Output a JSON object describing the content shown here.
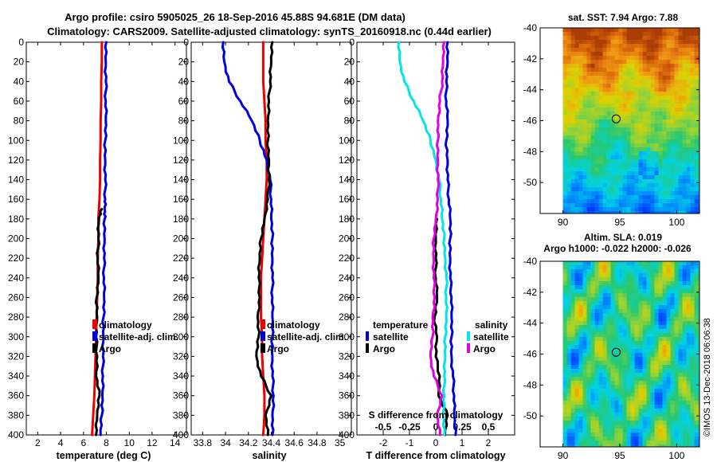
{
  "title": {
    "line1": "Argo profile: csiro 5905025_26 18-Sep-2016 45.88S 94.681E (DM data)",
    "line2": "Climatology: CARS2009. Satellite-adjusted climatology: synTS_20160918.nc (0.44d earlier)"
  },
  "colors": {
    "climatology": "#ee0000",
    "satellite": "#0000dd",
    "argo": "#000000",
    "sal_satellite": "#00e5e5",
    "sal_argo": "#e000e0"
  },
  "chart_data": [
    {
      "type": "line",
      "id": "temperature",
      "xlabel": "temperature (deg C)",
      "xlim": [
        1,
        15
      ],
      "ylim": [
        0,
        400
      ],
      "xticks": [
        "2",
        "4",
        "6",
        "8",
        "10",
        "12",
        "14"
      ],
      "xtick_values": [
        2,
        4,
        6,
        8,
        10,
        12,
        14
      ],
      "yticks": [
        "0",
        "20",
        "40",
        "60",
        "80",
        "100",
        "120",
        "140",
        "160",
        "180",
        "200",
        "220",
        "240",
        "260",
        "280",
        "300",
        "320",
        "340",
        "360",
        "380",
        "400"
      ],
      "depth": [
        0,
        20,
        40,
        60,
        80,
        100,
        120,
        140,
        160,
        170,
        180,
        200,
        220,
        240,
        260,
        280,
        300,
        320,
        340,
        360,
        380,
        400
      ],
      "series": [
        {
          "name": "climatology",
          "color_key": "climatology",
          "values": [
            7.6,
            7.6,
            7.55,
            7.55,
            7.5,
            7.5,
            7.45,
            7.45,
            7.4,
            7.35,
            7.3,
            7.3,
            7.25,
            7.25,
            7.2,
            7.15,
            7.1,
            7.05,
            7.0,
            6.95,
            6.85,
            6.75
          ]
        },
        {
          "name": "satellite-adj. clim.",
          "color_key": "satellite",
          "values": [
            8.0,
            7.95,
            7.95,
            7.95,
            7.95,
            7.9,
            7.9,
            7.9,
            7.9,
            7.85,
            7.85,
            7.85,
            7.8,
            7.8,
            7.8,
            7.75,
            7.75,
            7.7,
            7.7,
            7.65,
            7.6,
            7.5
          ]
        },
        {
          "name": "Argo",
          "color_key": "argo",
          "values": [
            null,
            null,
            null,
            null,
            null,
            null,
            null,
            null,
            null,
            7.6,
            7.35,
            7.3,
            7.25,
            7.3,
            7.15,
            7.2,
            7.1,
            7.2,
            7.1,
            7.4,
            7.2,
            7.1
          ]
        }
      ],
      "legend": [
        "climatology",
        "satellite-adj. clim.",
        "Argo"
      ]
    },
    {
      "type": "line",
      "id": "salinity",
      "xlabel": "salinity",
      "xlim": [
        33.7,
        35.1
      ],
      "ylim": [
        0,
        400
      ],
      "xticks": [
        "33.8",
        "34",
        "34.2",
        "34.4",
        "34.6",
        "34.8",
        "35"
      ],
      "xtick_values": [
        33.8,
        34,
        34.2,
        34.4,
        34.6,
        34.8,
        35
      ],
      "yticks": [
        "0",
        "20",
        "40",
        "60",
        "80",
        "100",
        "120",
        "140",
        "160",
        "180",
        "200",
        "220",
        "240",
        "260",
        "280",
        "300",
        "320",
        "340",
        "360",
        "380",
        "400"
      ],
      "depth": [
        0,
        20,
        40,
        60,
        80,
        100,
        120,
        140,
        160,
        180,
        200,
        220,
        240,
        260,
        280,
        300,
        320,
        340,
        360,
        380,
        400
      ],
      "series": [
        {
          "name": "climatology",
          "color_key": "climatology",
          "values": [
            34.33,
            34.33,
            34.33,
            34.34,
            34.35,
            34.35,
            34.36,
            34.36,
            34.35,
            34.34,
            34.33,
            34.32,
            34.31,
            34.31,
            34.31,
            34.32,
            34.32,
            34.33,
            34.34,
            34.34,
            34.33
          ]
        },
        {
          "name": "satellite-adj. clim.",
          "color_key": "satellite",
          "values": [
            33.98,
            33.99,
            34.03,
            34.13,
            34.23,
            34.3,
            34.36,
            34.39,
            34.4,
            34.4,
            34.41,
            34.41,
            34.41,
            34.41,
            34.41,
            34.41,
            34.41,
            34.41,
            34.42,
            34.41,
            34.41
          ]
        },
        {
          "name": "Argo",
          "color_key": "argo",
          "values": [
            34.41,
            34.4,
            34.39,
            34.38,
            34.37,
            34.37,
            34.38,
            34.38,
            34.37,
            34.34,
            34.31,
            34.3,
            34.29,
            34.3,
            34.28,
            34.29,
            34.27,
            34.31,
            34.4,
            34.35,
            34.37
          ]
        }
      ],
      "legend": [
        "climatology",
        "satellite-adj. clim.",
        "Argo"
      ]
    },
    {
      "type": "line",
      "id": "difference",
      "xlabel": "T difference from climatology",
      "xlim": [
        -3,
        3
      ],
      "ylim": [
        0,
        400
      ],
      "xticks": [
        "-2",
        "-1",
        "0",
        "1",
        "2"
      ],
      "xtick_values": [
        -2,
        -1,
        0,
        1,
        2
      ],
      "s_axis_label": "S difference from climatology",
      "s_xlim": [
        -0.75,
        0.75
      ],
      "s_xticks": [
        "-0.5",
        "-0.25",
        "0",
        "0.25",
        "0.5"
      ],
      "s_xtick_values": [
        -0.5,
        -0.25,
        0,
        0.25,
        0.5
      ],
      "depth": [
        0,
        20,
        40,
        60,
        80,
        100,
        120,
        140,
        160,
        180,
        200,
        220,
        240,
        260,
        280,
        300,
        320,
        340,
        360,
        380,
        400
      ],
      "series": [
        {
          "name": "temperature satellite",
          "color_key": "satellite",
          "axis": "T",
          "values": [
            0.45,
            0.45,
            0.4,
            0.4,
            0.45,
            0.4,
            0.45,
            0.45,
            0.5,
            0.55,
            0.55,
            0.55,
            0.55,
            0.6,
            0.6,
            0.6,
            0.6,
            0.65,
            0.7,
            0.7,
            0.75
          ]
        },
        {
          "name": "temperature Argo",
          "color_key": "argo",
          "axis": "T",
          "values": [
            null,
            null,
            null,
            null,
            null,
            null,
            null,
            null,
            null,
            0.05,
            0.0,
            0.0,
            0.0,
            0.05,
            -0.05,
            0.05,
            0.0,
            0.15,
            0.1,
            0.45,
            0.35
          ]
        },
        {
          "name": "salinity satellite",
          "color_key": "sal_satellite",
          "axis": "S",
          "values": [
            -0.35,
            -0.34,
            -0.3,
            -0.21,
            -0.12,
            -0.05,
            0.0,
            0.03,
            0.05,
            0.06,
            0.08,
            0.09,
            0.1,
            0.1,
            0.1,
            0.09,
            0.09,
            0.08,
            0.08,
            0.07,
            0.08
          ]
        },
        {
          "name": "salinity Argo",
          "color_key": "sal_argo",
          "axis": "S",
          "values": [
            0.08,
            0.07,
            0.06,
            0.04,
            0.02,
            0.02,
            0.02,
            0.02,
            0.02,
            0.0,
            -0.02,
            -0.02,
            -0.02,
            -0.01,
            -0.03,
            -0.03,
            -0.05,
            -0.02,
            0.06,
            0.01,
            0.04
          ]
        }
      ],
      "legend_temperature": {
        "heading": "temperature",
        "items": [
          "satellite",
          "Argo"
        ]
      },
      "legend_salinity": {
        "heading": "salinity",
        "items": [
          "satellite",
          "Argo"
        ]
      }
    },
    {
      "type": "heatmap",
      "id": "sst_map",
      "title": "sat. SST: 7.94 Argo: 7.88",
      "xlim": [
        88,
        102
      ],
      "ylim": [
        -52,
        -40
      ],
      "xticks": [
        "90",
        "95",
        "100"
      ],
      "xtick_values": [
        90,
        95,
        100
      ],
      "yticks": [
        "-40",
        "-42",
        "-44",
        "-46",
        "-48",
        "-50"
      ],
      "ytick_values": [
        -40,
        -42,
        -44,
        -46,
        -48,
        -50
      ],
      "data_lon_range": [
        90,
        102
      ],
      "marker": {
        "lon": 94.681,
        "lat": -45.88
      }
    },
    {
      "type": "heatmap",
      "id": "sla_map",
      "title": "Altim. SLA: 0.019",
      "subtitle": "Argo h1000: -0.022 h2000: -0.026",
      "xlim": [
        88,
        102
      ],
      "ylim": [
        -52,
        -40
      ],
      "xticks": [
        "90",
        "95",
        "100"
      ],
      "xtick_values": [
        90,
        95,
        100
      ],
      "yticks": [
        "-40",
        "-42",
        "-44",
        "-46",
        "-48",
        "-50"
      ],
      "ytick_values": [
        -40,
        -42,
        -44,
        -46,
        -48,
        -50
      ],
      "data_lon_range": [
        90,
        102
      ],
      "marker": {
        "lon": 94.681,
        "lat": -45.88
      }
    }
  ],
  "footer": {
    "stamp": "©IMOS 13-Dec-2018 06:06:38"
  }
}
